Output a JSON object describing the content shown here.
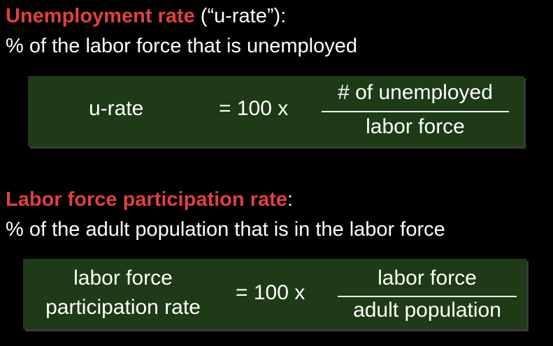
{
  "unemployment": {
    "heading_accent": "Unemployment rate",
    "heading_rest": " (“u-rate”):",
    "description": "% of the labor force that is unemployed",
    "formula": {
      "lhs": "u-rate",
      "equals": "= 100 x",
      "numerator": "# of unemployed",
      "denominator": "labor force"
    }
  },
  "participation": {
    "heading_accent": "Labor force participation rate",
    "heading_rest": ":",
    "description": "% of the adult population that is in the labor force",
    "formula": {
      "lhs_line1": "labor force",
      "lhs_line2": "participation rate",
      "equals": "= 100 x",
      "numerator": "labor force",
      "denominator": "adult population"
    }
  },
  "colors": {
    "accent": "#e0413e",
    "box_background": "#1f3a16",
    "text": "#ffffff",
    "background": "#000000"
  }
}
